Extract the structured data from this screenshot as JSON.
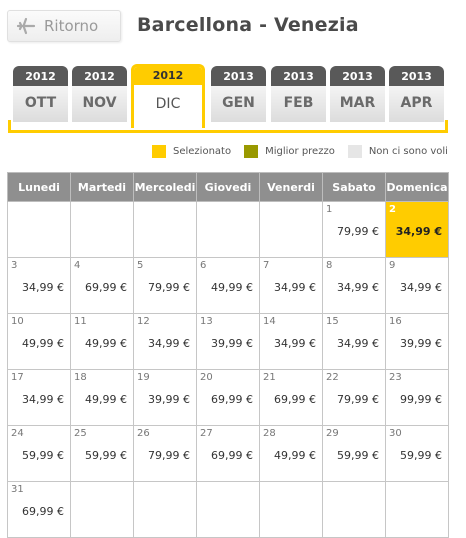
{
  "header": {
    "back_label": "Ritorno",
    "title": "Barcellona - Venezia"
  },
  "months": [
    {
      "year": "2012",
      "month": "OTT"
    },
    {
      "year": "2012",
      "month": "NOV"
    },
    {
      "year": "2012",
      "month": "DIC",
      "active": true
    },
    {
      "year": "2013",
      "month": "GEN"
    },
    {
      "year": "2013",
      "month": "FEB"
    },
    {
      "year": "2013",
      "month": "MAR"
    },
    {
      "year": "2013",
      "month": "APR"
    }
  ],
  "legend": {
    "selected": "Selezionato",
    "best_price": "Miglior prezzo",
    "no_flights": "Non ci sono voli"
  },
  "colors": {
    "accent": "#ffcc00",
    "best_price": "#999900",
    "no_flights": "#e6e6e6",
    "header_bg": "#8f8f8f"
  },
  "calendar": {
    "weekdays": [
      "Lunedi",
      "Martedi",
      "Mercoledi",
      "Giovedi",
      "Venerdi",
      "Sabato",
      "Domenica"
    ],
    "weeks": [
      [
        null,
        null,
        null,
        null,
        null,
        {
          "day": "1",
          "price": "79,99 €"
        },
        {
          "day": "2",
          "price": "34,99 €",
          "selected": true
        }
      ],
      [
        {
          "day": "3",
          "price": "34,99 €"
        },
        {
          "day": "4",
          "price": "69,99 €"
        },
        {
          "day": "5",
          "price": "79,99 €"
        },
        {
          "day": "6",
          "price": "49,99 €"
        },
        {
          "day": "7",
          "price": "34,99 €"
        },
        {
          "day": "8",
          "price": "34,99 €"
        },
        {
          "day": "9",
          "price": "34,99 €"
        }
      ],
      [
        {
          "day": "10",
          "price": "49,99 €"
        },
        {
          "day": "11",
          "price": "49,99 €"
        },
        {
          "day": "12",
          "price": "34,99 €"
        },
        {
          "day": "13",
          "price": "39,99 €"
        },
        {
          "day": "14",
          "price": "34,99 €"
        },
        {
          "day": "15",
          "price": "34,99 €"
        },
        {
          "day": "16",
          "price": "39,99 €"
        }
      ],
      [
        {
          "day": "17",
          "price": "34,99 €"
        },
        {
          "day": "18",
          "price": "49,99 €"
        },
        {
          "day": "19",
          "price": "39,99 €"
        },
        {
          "day": "20",
          "price": "69,99 €"
        },
        {
          "day": "21",
          "price": "69,99 €"
        },
        {
          "day": "22",
          "price": "79,99 €"
        },
        {
          "day": "23",
          "price": "99,99 €"
        }
      ],
      [
        {
          "day": "24",
          "price": "59,99 €"
        },
        {
          "day": "25",
          "price": "59,99 €"
        },
        {
          "day": "26",
          "price": "79,99 €"
        },
        {
          "day": "27",
          "price": "69,99 €"
        },
        {
          "day": "28",
          "price": "49,99 €"
        },
        {
          "day": "29",
          "price": "59,99 €"
        },
        {
          "day": "30",
          "price": "59,99 €"
        }
      ],
      [
        {
          "day": "31",
          "price": "69,99 €"
        },
        null,
        null,
        null,
        null,
        null,
        null
      ]
    ]
  }
}
